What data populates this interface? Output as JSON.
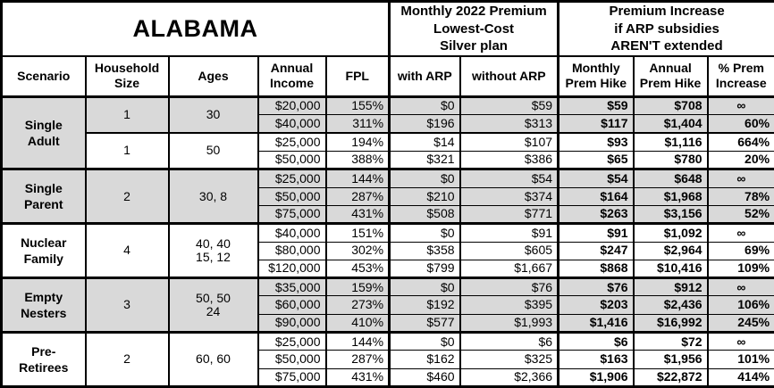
{
  "header": {
    "state": "ALABAMA",
    "monthly_premium_group": "Monthly 2022 Premium\nLowest-Cost\nSilver plan",
    "premium_increase_group": "Premium Increase\nif ARP subsidies\nAREN'T extended"
  },
  "columns": [
    "Scenario",
    "Household\nSize",
    "Ages",
    "Annual\nIncome",
    "FPL",
    "with ARP",
    "without ARP",
    "Monthly\nPrem Hike",
    "Annual\nPrem Hike",
    "% Prem\nIncrease"
  ],
  "shade_color": "#d9d9d9",
  "sections": [
    {
      "scenario": "Single\nAdult",
      "groups": [
        {
          "household_size": "1",
          "ages": "30",
          "shaded": true,
          "rows": [
            [
              "$20,000",
              "155%",
              "$0",
              "$59",
              "$59",
              "$708",
              "∞"
            ],
            [
              "$40,000",
              "311%",
              "$196",
              "$313",
              "$117",
              "$1,404",
              "60%"
            ]
          ]
        },
        {
          "household_size": "1",
          "ages": "50",
          "shaded": false,
          "rows": [
            [
              "$25,000",
              "194%",
              "$14",
              "$107",
              "$93",
              "$1,116",
              "664%"
            ],
            [
              "$50,000",
              "388%",
              "$321",
              "$386",
              "$65",
              "$780",
              "20%"
            ]
          ]
        }
      ]
    },
    {
      "scenario": "Single\nParent",
      "groups": [
        {
          "household_size": "2",
          "ages": "30, 8",
          "shaded": true,
          "rows": [
            [
              "$25,000",
              "144%",
              "$0",
              "$54",
              "$54",
              "$648",
              "∞"
            ],
            [
              "$50,000",
              "287%",
              "$210",
              "$374",
              "$164",
              "$1,968",
              "78%"
            ],
            [
              "$75,000",
              "431%",
              "$508",
              "$771",
              "$263",
              "$3,156",
              "52%"
            ]
          ]
        }
      ]
    },
    {
      "scenario": "Nuclear\nFamily",
      "groups": [
        {
          "household_size": "4",
          "ages": "40, 40\n15, 12",
          "shaded": false,
          "rows": [
            [
              "$40,000",
              "151%",
              "$0",
              "$91",
              "$91",
              "$1,092",
              "∞"
            ],
            [
              "$80,000",
              "302%",
              "$358",
              "$605",
              "$247",
              "$2,964",
              "69%"
            ],
            [
              "$120,000",
              "453%",
              "$799",
              "$1,667",
              "$868",
              "$10,416",
              "109%"
            ]
          ]
        }
      ]
    },
    {
      "scenario": "Empty\nNesters",
      "groups": [
        {
          "household_size": "3",
          "ages": "50, 50\n24",
          "shaded": true,
          "rows": [
            [
              "$35,000",
              "159%",
              "$0",
              "$76",
              "$76",
              "$912",
              "∞"
            ],
            [
              "$60,000",
              "273%",
              "$192",
              "$395",
              "$203",
              "$2,436",
              "106%"
            ],
            [
              "$90,000",
              "410%",
              "$577",
              "$1,993",
              "$1,416",
              "$16,992",
              "245%"
            ]
          ]
        }
      ]
    },
    {
      "scenario": "Pre-\nRetirees",
      "groups": [
        {
          "household_size": "2",
          "ages": "60, 60",
          "shaded": false,
          "rows": [
            [
              "$25,000",
              "144%",
              "$0",
              "$6",
              "$6",
              "$72",
              "∞"
            ],
            [
              "$50,000",
              "287%",
              "$162",
              "$325",
              "$163",
              "$1,956",
              "101%"
            ],
            [
              "$75,000",
              "431%",
              "$460",
              "$2,366",
              "$1,906",
              "$22,872",
              "414%"
            ]
          ]
        }
      ]
    }
  ],
  "chart_data": {
    "type": "table",
    "title": "ALABAMA",
    "column_groups": [
      "Monthly 2022 Premium Lowest-Cost Silver plan",
      "Premium Increase if ARP subsidies AREN'T extended"
    ],
    "columns": [
      "Scenario",
      "Household Size",
      "Ages",
      "Annual Income",
      "FPL",
      "with ARP",
      "without ARP",
      "Monthly Prem Hike",
      "Annual Prem Hike",
      "% Prem Increase"
    ],
    "rows": [
      [
        "Single Adult",
        "1",
        "30",
        "$20,000",
        "155%",
        "$0",
        "$59",
        "$59",
        "$708",
        "∞"
      ],
      [
        "Single Adult",
        "1",
        "30",
        "$40,000",
        "311%",
        "$196",
        "$313",
        "$117",
        "$1,404",
        "60%"
      ],
      [
        "Single Adult",
        "1",
        "50",
        "$25,000",
        "194%",
        "$14",
        "$107",
        "$93",
        "$1,116",
        "664%"
      ],
      [
        "Single Adult",
        "1",
        "50",
        "$50,000",
        "388%",
        "$321",
        "$386",
        "$65",
        "$780",
        "20%"
      ],
      [
        "Single Parent",
        "2",
        "30, 8",
        "$25,000",
        "144%",
        "$0",
        "$54",
        "$54",
        "$648",
        "∞"
      ],
      [
        "Single Parent",
        "2",
        "30, 8",
        "$50,000",
        "287%",
        "$210",
        "$374",
        "$164",
        "$1,968",
        "78%"
      ],
      [
        "Single Parent",
        "2",
        "30, 8",
        "$75,000",
        "431%",
        "$508",
        "$771",
        "$263",
        "$3,156",
        "52%"
      ],
      [
        "Nuclear Family",
        "4",
        "40, 40, 15, 12",
        "$40,000",
        "151%",
        "$0",
        "$91",
        "$91",
        "$1,092",
        "∞"
      ],
      [
        "Nuclear Family",
        "4",
        "40, 40, 15, 12",
        "$80,000",
        "302%",
        "$358",
        "$605",
        "$247",
        "$2,964",
        "69%"
      ],
      [
        "Nuclear Family",
        "4",
        "40, 40, 15, 12",
        "$120,000",
        "453%",
        "$799",
        "$1,667",
        "$868",
        "$10,416",
        "109%"
      ],
      [
        "Empty Nesters",
        "3",
        "50, 50, 24",
        "$35,000",
        "159%",
        "$0",
        "$76",
        "$76",
        "$912",
        "∞"
      ],
      [
        "Empty Nesters",
        "3",
        "50, 50, 24",
        "$60,000",
        "273%",
        "$192",
        "$395",
        "$203",
        "$2,436",
        "106%"
      ],
      [
        "Empty Nesters",
        "3",
        "50, 50, 24",
        "$90,000",
        "410%",
        "$577",
        "$1,993",
        "$1,416",
        "$16,992",
        "245%"
      ],
      [
        "Pre-Retirees",
        "2",
        "60, 60",
        "$25,000",
        "144%",
        "$0",
        "$6",
        "$6",
        "$72",
        "∞"
      ],
      [
        "Pre-Retirees",
        "2",
        "60, 60",
        "$50,000",
        "287%",
        "$162",
        "$325",
        "$163",
        "$1,956",
        "101%"
      ],
      [
        "Pre-Retirees",
        "2",
        "60, 60",
        "$75,000",
        "431%",
        "$460",
        "$2,366",
        "$1,906",
        "$22,872",
        "414%"
      ]
    ]
  }
}
